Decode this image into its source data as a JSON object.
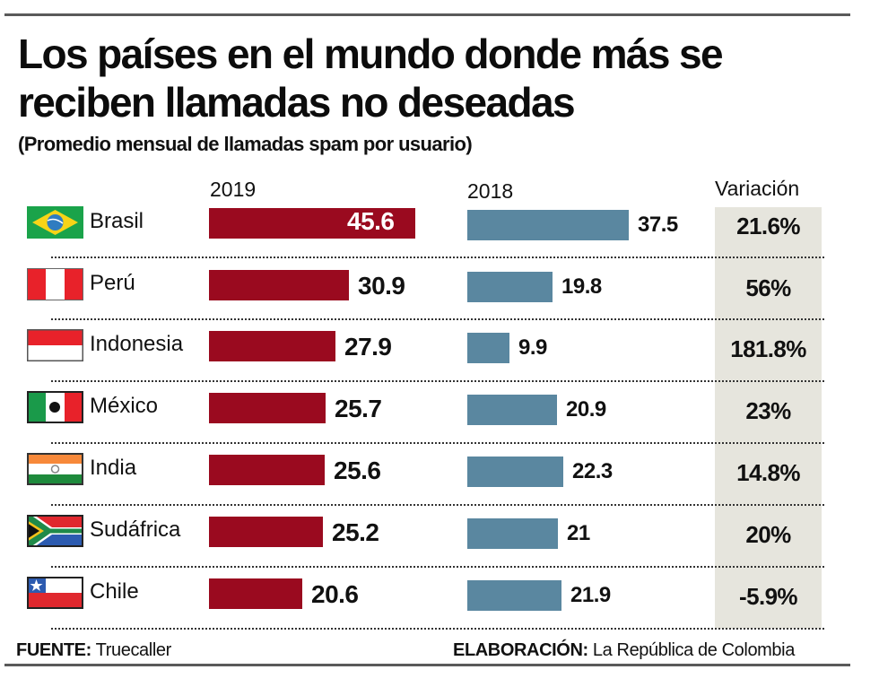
{
  "chart_data": {
    "type": "bar",
    "title": "Los países en el mundo donde más se reciben llamadas no deseadas",
    "subtitle": "(Promedio mensual de llamadas spam por usuario)",
    "categories": [
      "Brasil",
      "Perú",
      "Indonesia",
      "México",
      "India",
      "Sudáfrica",
      "Chile"
    ],
    "series": [
      {
        "name": "2019",
        "color": "#9a0a1f",
        "values": [
          45.6,
          30.9,
          27.9,
          25.7,
          25.6,
          25.2,
          20.6
        ],
        "labels": [
          "45.6",
          "30.9",
          "27.9",
          "25.7",
          "25.6",
          "25.2",
          "20.6"
        ]
      },
      {
        "name": "2018",
        "color": "#5a87a0",
        "values": [
          37.5,
          19.8,
          9.9,
          20.9,
          22.3,
          21,
          21.9
        ],
        "labels": [
          "37.5",
          "19.8",
          "9.9",
          "20.9",
          "22.3",
          "21",
          "21.9"
        ]
      }
    ],
    "variation": {
      "header": "Variación",
      "values": [
        "21.6%",
        "56%",
        "181.8%",
        "23%",
        "14.8%",
        "20%",
        "-5.9%"
      ]
    },
    "xlabel": "",
    "ylabel": "",
    "orientation": "horizontal",
    "grid": false,
    "legend": "column-headers-top"
  },
  "flags": [
    "brazil-flag-icon",
    "peru-flag-icon",
    "indonesia-flag-icon",
    "mexico-flag-icon",
    "india-flag-icon",
    "south-africa-flag-icon",
    "chile-flag-icon"
  ],
  "footer": {
    "source_label": "FUENTE:",
    "source_value": "Truecaller",
    "credit_label": "ELABORACIÓN:",
    "credit_value": "La República de Colombia"
  }
}
